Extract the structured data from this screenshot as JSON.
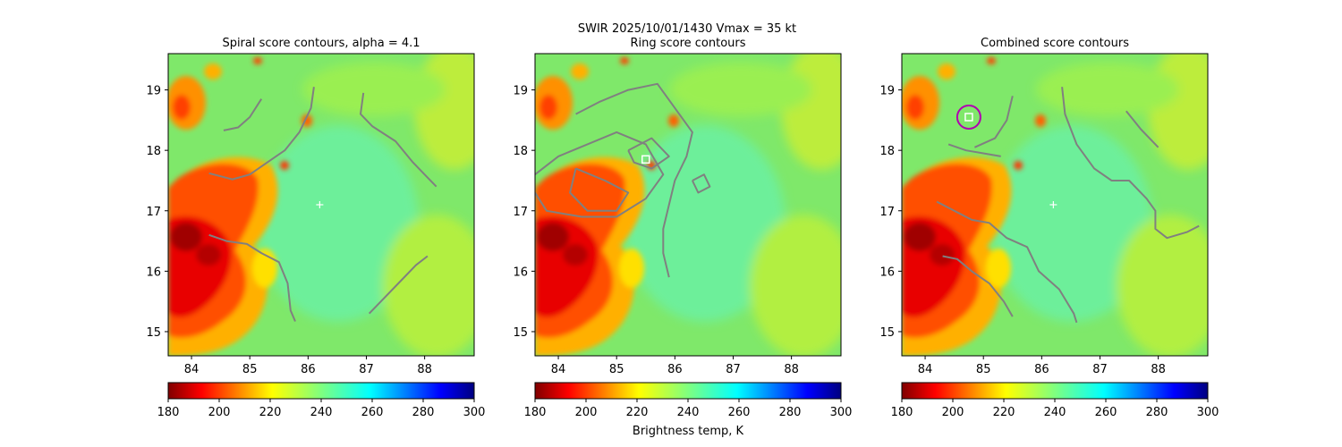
{
  "suptitle": "SWIR  2025/10/01/1430    Vmax = 35 kt",
  "colorbar_label": "Brightness temp, K",
  "colors": {
    "contour": "#808080",
    "marker_circle": "#b000b0",
    "marker_square": "#ffffff",
    "center_cross": "#ffffff",
    "colormap": "jet_r"
  },
  "chart_data": [
    {
      "type": "heatmap",
      "title": "Spiral score contours, alpha =  4.1",
      "xlim": [
        83.6,
        88.85
      ],
      "ylim": [
        14.6,
        19.6
      ],
      "xticks": [
        84,
        85,
        86,
        87,
        88
      ],
      "yticks": [
        15,
        16,
        17,
        18,
        19
      ],
      "colorbar": {
        "min": 180,
        "max": 300,
        "ticks": [
          180,
          200,
          220,
          240,
          260,
          280,
          300
        ]
      },
      "center_marker": [
        86.2,
        17.1
      ],
      "contours": [
        [
          [
            84.55,
            18.33
          ],
          [
            84.8,
            18.38
          ],
          [
            85.0,
            18.55
          ],
          [
            85.2,
            18.85
          ]
        ],
        [
          [
            84.3,
            17.62
          ],
          [
            84.7,
            17.52
          ],
          [
            85.0,
            17.6
          ],
          [
            85.3,
            17.8
          ],
          [
            85.6,
            18.0
          ],
          [
            85.85,
            18.3
          ],
          [
            86.05,
            18.7
          ],
          [
            86.1,
            19.05
          ]
        ],
        [
          [
            84.3,
            16.6
          ],
          [
            84.6,
            16.5
          ],
          [
            84.95,
            16.45
          ],
          [
            85.2,
            16.3
          ],
          [
            85.5,
            16.15
          ],
          [
            85.65,
            15.8
          ],
          [
            85.7,
            15.35
          ],
          [
            85.78,
            15.17
          ]
        ],
        [
          [
            86.95,
            18.95
          ],
          [
            86.9,
            18.6
          ],
          [
            87.1,
            18.4
          ],
          [
            87.5,
            18.15
          ],
          [
            87.8,
            17.8
          ],
          [
            88.0,
            17.6
          ],
          [
            88.2,
            17.4
          ]
        ],
        [
          [
            87.05,
            15.3
          ],
          [
            87.3,
            15.55
          ],
          [
            87.6,
            15.85
          ],
          [
            87.85,
            16.1
          ],
          [
            88.05,
            16.25
          ]
        ]
      ],
      "markers": []
    },
    {
      "type": "heatmap",
      "title": "Ring score contours",
      "xlim": [
        83.6,
        88.85
      ],
      "ylim": [
        14.6,
        19.6
      ],
      "xticks": [
        84,
        85,
        86,
        87,
        88
      ],
      "yticks": [
        15,
        16,
        17,
        18,
        19
      ],
      "colorbar": {
        "min": 180,
        "max": 300,
        "ticks": [
          180,
          200,
          220,
          240,
          260,
          280,
          300
        ]
      },
      "center_marker": null,
      "contours": [
        [
          [
            84.3,
            18.6
          ],
          [
            84.7,
            18.8
          ],
          [
            85.2,
            19.0
          ],
          [
            85.7,
            19.1
          ],
          [
            86.0,
            18.7
          ],
          [
            86.3,
            18.3
          ],
          [
            86.2,
            17.9
          ],
          [
            86.0,
            17.5
          ],
          [
            85.9,
            17.1
          ],
          [
            85.8,
            16.7
          ],
          [
            85.8,
            16.3
          ],
          [
            85.9,
            15.9
          ]
        ],
        [
          [
            83.6,
            17.6
          ],
          [
            84.0,
            17.9
          ],
          [
            84.5,
            18.1
          ],
          [
            85.0,
            18.3
          ],
          [
            85.5,
            18.1
          ],
          [
            85.8,
            17.6
          ],
          [
            85.5,
            17.2
          ],
          [
            85.0,
            16.9
          ],
          [
            84.4,
            16.9
          ],
          [
            83.8,
            17.0
          ],
          [
            83.6,
            17.3
          ]
        ],
        [
          [
            84.3,
            17.7
          ],
          [
            84.8,
            17.5
          ],
          [
            85.2,
            17.3
          ],
          [
            85.0,
            17.0
          ],
          [
            84.5,
            17.0
          ],
          [
            84.2,
            17.3
          ],
          [
            84.3,
            17.7
          ]
        ],
        [
          [
            85.2,
            18.0
          ],
          [
            85.6,
            18.2
          ],
          [
            85.9,
            17.9
          ],
          [
            85.6,
            17.7
          ],
          [
            85.3,
            17.8
          ],
          [
            85.2,
            18.0
          ]
        ],
        [
          [
            86.3,
            17.5
          ],
          [
            86.5,
            17.6
          ],
          [
            86.6,
            17.4
          ],
          [
            86.4,
            17.3
          ],
          [
            86.3,
            17.5
          ]
        ]
      ],
      "markers": [
        {
          "shape": "square",
          "x": 85.5,
          "y": 17.85
        }
      ]
    },
    {
      "type": "heatmap",
      "title": "Combined score contours",
      "xlim": [
        83.6,
        88.85
      ],
      "ylim": [
        14.6,
        19.6
      ],
      "xticks": [
        84,
        85,
        86,
        87,
        88
      ],
      "yticks": [
        15,
        16,
        17,
        18,
        19
      ],
      "colorbar": {
        "min": 180,
        "max": 300,
        "ticks": [
          180,
          200,
          220,
          240,
          260,
          280,
          300
        ]
      },
      "center_marker": [
        86.2,
        17.1
      ],
      "contours": [
        [
          [
            84.85,
            18.05
          ],
          [
            85.2,
            18.2
          ],
          [
            85.4,
            18.5
          ],
          [
            85.5,
            18.9
          ]
        ],
        [
          [
            84.4,
            18.1
          ],
          [
            84.7,
            18.0
          ],
          [
            85.0,
            17.95
          ],
          [
            85.3,
            17.9
          ]
        ],
        [
          [
            84.2,
            17.15
          ],
          [
            84.5,
            17.0
          ],
          [
            84.8,
            16.85
          ],
          [
            85.1,
            16.8
          ],
          [
            85.4,
            16.55
          ],
          [
            85.75,
            16.4
          ],
          [
            85.95,
            16.0
          ],
          [
            86.3,
            15.7
          ],
          [
            86.55,
            15.3
          ],
          [
            86.6,
            15.15
          ]
        ],
        [
          [
            84.3,
            16.25
          ],
          [
            84.55,
            16.2
          ],
          [
            84.8,
            16.0
          ],
          [
            85.1,
            15.8
          ],
          [
            85.35,
            15.5
          ],
          [
            85.5,
            15.25
          ]
        ],
        [
          [
            86.35,
            19.05
          ],
          [
            86.4,
            18.6
          ],
          [
            86.6,
            18.1
          ],
          [
            86.9,
            17.7
          ],
          [
            87.2,
            17.5
          ],
          [
            87.5,
            17.5
          ],
          [
            87.8,
            17.2
          ],
          [
            87.95,
            17.0
          ],
          [
            87.95,
            16.7
          ],
          [
            88.15,
            16.55
          ],
          [
            88.5,
            16.65
          ],
          [
            88.7,
            16.75
          ]
        ],
        [
          [
            87.45,
            18.65
          ],
          [
            87.7,
            18.35
          ],
          [
            88.0,
            18.05
          ]
        ]
      ],
      "markers": [
        {
          "shape": "circle",
          "x": 84.75,
          "y": 18.55
        },
        {
          "shape": "square",
          "x": 84.75,
          "y": 18.55
        }
      ]
    }
  ]
}
